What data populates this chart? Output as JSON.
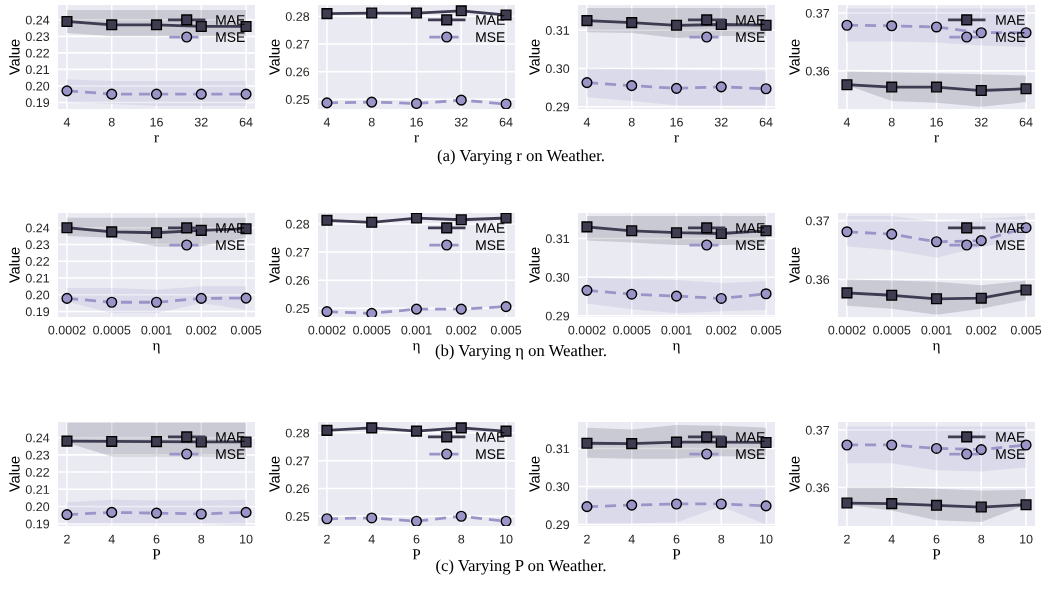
{
  "chart_data": [
    {
      "type": "line",
      "categories": [
        "4",
        "8",
        "16",
        "32",
        "64"
      ],
      "xlabel": "r",
      "ylabel": "Value",
      "ylim": [
        0.186,
        0.249
      ],
      "yticks": [
        {
          "value": 0.19,
          "label": "0.19"
        },
        {
          "value": 0.2,
          "label": "0.20"
        },
        {
          "value": 0.21,
          "label": "0.21"
        },
        {
          "value": 0.22,
          "label": "0.22"
        },
        {
          "value": 0.23,
          "label": "0.23"
        },
        {
          "value": 0.24,
          "label": "0.24"
        }
      ],
      "grid": true,
      "legend": "top right",
      "annotations": [
        "(a) Varying r on Weather."
      ],
      "series": [
        {
          "name": "MAE",
          "color": "#3f3c52",
          "marker": "square",
          "line_style": "solid",
          "values": [
            0.239,
            0.237,
            0.237,
            0.236,
            0.236
          ],
          "lower": [
            0.232,
            0.23,
            0.23,
            0.23,
            0.23
          ],
          "upper": [
            0.246,
            0.246,
            0.246,
            0.246,
            0.246
          ]
        },
        {
          "name": "MSE",
          "color": "#9b94c8",
          "marker": "circle",
          "line_style": "dashed",
          "values": [
            0.197,
            0.195,
            0.195,
            0.195,
            0.195
          ],
          "lower": [
            0.19,
            0.189,
            0.188,
            0.188,
            0.188
          ],
          "upper": [
            0.204,
            0.203,
            0.203,
            0.203,
            0.203
          ]
        }
      ]
    },
    {
      "type": "line",
      "categories": [
        "4",
        "8",
        "16",
        "32",
        "64"
      ],
      "xlabel": "r",
      "ylabel": "Value",
      "ylim": [
        0.2465,
        0.2841
      ],
      "yticks": [
        0.25,
        0.26,
        0.27,
        0.28
      ],
      "grid": true,
      "legend": "top right",
      "series": [
        {
          "name": "MAE",
          "color": "#3f3c52",
          "marker": "square",
          "line_style": "solid",
          "values": [
            0.281,
            0.2812,
            0.2812,
            0.282,
            0.2805
          ]
        },
        {
          "name": "MSE",
          "color": "#9b94c8",
          "marker": "circle",
          "line_style": "dashed",
          "values": [
            0.2487,
            0.249,
            0.2485,
            0.2497,
            0.2483
          ]
        }
      ]
    },
    {
      "type": "line",
      "categories": [
        "4",
        "8",
        "16",
        "32",
        "64"
      ],
      "xlabel": "r",
      "ylabel": "Value",
      "ylim": [
        0.2894,
        0.3166
      ],
      "yticks": [
        {
          "value": 0.29,
          "label": "0.29"
        },
        {
          "value": 0.3,
          "label": "0.30"
        },
        {
          "value": 0.31,
          "label": "0.31"
        }
      ],
      "grid": true,
      "legend": "top right",
      "series": [
        {
          "name": "MAE",
          "color": "#3f3c52",
          "marker": "square",
          "line_style": "solid",
          "values": [
            0.3125,
            0.312,
            0.3113,
            0.3115,
            0.3113
          ],
          "lower": [
            0.3095,
            0.3093,
            0.308,
            0.3085,
            0.3085
          ],
          "upper": [
            0.3158,
            0.3158,
            0.3158,
            0.3158,
            0.3158
          ]
        },
        {
          "name": "MSE",
          "color": "#9b94c8",
          "marker": "circle",
          "line_style": "dashed",
          "values": [
            0.2963,
            0.2955,
            0.2948,
            0.2952,
            0.2947
          ],
          "lower": [
            0.2925,
            0.2915,
            0.2903,
            0.2903,
            0.2903
          ],
          "upper": [
            0.3,
            0.2998,
            0.2996,
            0.2995,
            0.2993
          ]
        }
      ]
    },
    {
      "type": "line",
      "categories": [
        "4",
        "8",
        "16",
        "32",
        "64"
      ],
      "xlabel": "r",
      "ylabel": "Value",
      "ylim": [
        0.3534,
        0.3714
      ],
      "yticks": [
        0.36,
        0.37
      ],
      "grid": true,
      "legend": "top right",
      "series": [
        {
          "name": "MAE",
          "color": "#3f3c52",
          "marker": "square",
          "line_style": "solid",
          "values": [
            0.3576,
            0.3572,
            0.3572,
            0.3566,
            0.3569
          ],
          "lower": [
            0.3575,
            0.3548,
            0.3545,
            0.3538,
            0.3546
          ],
          "upper": [
            0.3599,
            0.3597,
            0.3596,
            0.3594,
            0.3592
          ]
        },
        {
          "name": "MSE",
          "color": "#9b94c8",
          "marker": "circle",
          "line_style": "dashed",
          "values": [
            0.3679,
            0.3678,
            0.3676,
            0.3666,
            0.3666
          ],
          "lower": [
            0.3651,
            0.3651,
            0.3649,
            0.3644,
            0.3641
          ],
          "upper": [
            0.3708,
            0.3708,
            0.3708,
            0.3708,
            0.3708
          ]
        }
      ]
    },
    {
      "type": "line",
      "categories": [
        "0.0002",
        "0.0005",
        "0.001",
        "0.002",
        "0.005"
      ],
      "xlabel": "η",
      "ylabel": "Value",
      "ylim": [
        0.1867,
        0.2488
      ],
      "yticks": [
        {
          "value": 0.19,
          "label": "0.19"
        },
        {
          "value": 0.2,
          "label": "0.20"
        },
        {
          "value": 0.21,
          "label": "0.21"
        },
        {
          "value": 0.22,
          "label": "0.22"
        },
        {
          "value": 0.23,
          "label": "0.23"
        },
        {
          "value": 0.24,
          "label": "0.24"
        }
      ],
      "grid": true,
      "legend": "top right",
      "annotations": [
        "(b) Varying η on Weather."
      ],
      "series": [
        {
          "name": "MAE",
          "color": "#3f3c52",
          "marker": "square",
          "line_style": "solid",
          "values": [
            0.24,
            0.2375,
            0.237,
            0.2384,
            0.2394
          ],
          "lower": [
            0.2351,
            0.234,
            0.2288,
            0.229,
            0.234
          ],
          "upper": [
            0.246,
            0.246,
            0.246,
            0.246,
            0.246
          ]
        },
        {
          "name": "MSE",
          "color": "#9b94c8",
          "marker": "circle",
          "line_style": "dashed",
          "values": [
            0.1978,
            0.1955,
            0.1955,
            0.1978,
            0.198
          ],
          "lower": [
            0.196,
            0.189,
            0.189,
            0.195,
            0.191
          ],
          "upper": [
            0.204,
            0.204,
            0.203,
            0.205,
            0.205
          ]
        }
      ]
    },
    {
      "type": "line",
      "categories": [
        "0.0002",
        "0.0005",
        "0.001",
        "0.002",
        "0.005"
      ],
      "xlabel": "η",
      "ylabel": "Value",
      "ylim": [
        0.2469,
        0.2839
      ],
      "yticks": [
        0.25,
        0.26,
        0.27,
        0.28
      ],
      "grid": true,
      "legend": "top right",
      "series": [
        {
          "name": "MAE",
          "color": "#3f3c52",
          "marker": "square",
          "line_style": "solid",
          "values": [
            0.2813,
            0.2806,
            0.2821,
            0.2815,
            0.2821
          ]
        },
        {
          "name": "MSE",
          "color": "#9b94c8",
          "marker": "circle",
          "line_style": "dashed",
          "values": [
            0.2488,
            0.2482,
            0.2497,
            0.2497,
            0.2506
          ]
        }
      ]
    },
    {
      "type": "line",
      "categories": [
        "0.0002",
        "0.0005",
        "0.001",
        "0.002",
        "0.005"
      ],
      "xlabel": "η",
      "ylabel": "Value",
      "ylim": [
        0.2897,
        0.3166
      ],
      "yticks": [
        {
          "value": 0.29,
          "label": "0.29"
        },
        {
          "value": 0.3,
          "label": "0.30"
        },
        {
          "value": 0.31,
          "label": "0.31"
        }
      ],
      "grid": true,
      "legend": "top right",
      "series": [
        {
          "name": "MAE",
          "color": "#3f3c52",
          "marker": "square",
          "line_style": "solid",
          "values": [
            0.313,
            0.312,
            0.3115,
            0.3113,
            0.312
          ],
          "lower": [
            0.3095,
            0.309,
            0.3083,
            0.3083,
            0.3085
          ],
          "upper": [
            0.3158,
            0.3158,
            0.3158,
            0.3158,
            0.3158
          ]
        },
        {
          "name": "MSE",
          "color": "#9b94c8",
          "marker": "circle",
          "line_style": "dashed",
          "values": [
            0.2966,
            0.2956,
            0.2951,
            0.2945,
            0.2957
          ],
          "lower": [
            0.2932,
            0.2917,
            0.2907,
            0.2912,
            0.2915
          ],
          "upper": [
            0.2999,
            0.2995,
            0.2993,
            0.2985,
            0.299
          ]
        }
      ]
    },
    {
      "type": "line",
      "categories": [
        "0.0002",
        "0.0005",
        "0.001",
        "0.002",
        "0.005"
      ],
      "xlabel": "η",
      "ylabel": "Value",
      "ylim": [
        0.3536,
        0.3713
      ],
      "yticks": [
        0.36,
        0.37
      ],
      "grid": true,
      "legend": "top right",
      "series": [
        {
          "name": "MAE",
          "color": "#3f3c52",
          "marker": "square",
          "line_style": "solid",
          "values": [
            0.3577,
            0.3573,
            0.3567,
            0.3568,
            0.3582
          ],
          "lower": [
            0.3555,
            0.355,
            0.354,
            0.355,
            0.3565
          ],
          "upper": [
            0.36,
            0.3598,
            0.3596,
            0.359,
            0.3598
          ]
        },
        {
          "name": "MSE",
          "color": "#9b94c8",
          "marker": "circle",
          "line_style": "dashed",
          "values": [
            0.3681,
            0.3677,
            0.3664,
            0.3666,
            0.3688
          ],
          "lower": [
            0.3656,
            0.365,
            0.3637,
            0.3655,
            0.3668
          ],
          "upper": [
            0.3708,
            0.3708,
            0.3698,
            0.3703,
            0.3708
          ]
        }
      ]
    },
    {
      "type": "line",
      "categories": [
        "2",
        "4",
        "6",
        "8",
        "10"
      ],
      "xlabel": "P",
      "ylabel": "Value",
      "ylim": [
        0.1887,
        0.2491
      ],
      "yticks": [
        {
          "value": 0.19,
          "label": "0.19"
        },
        {
          "value": 0.2,
          "label": "0.20"
        },
        {
          "value": 0.21,
          "label": "0.21"
        },
        {
          "value": 0.22,
          "label": "0.22"
        },
        {
          "value": 0.23,
          "label": "0.23"
        },
        {
          "value": 0.24,
          "label": "0.24"
        }
      ],
      "grid": true,
      "legend": "top right",
      "annotations": [
        "(c) Varying P on Weather."
      ],
      "series": [
        {
          "name": "MAE",
          "color": "#3f3c52",
          "marker": "square",
          "line_style": "solid",
          "values": [
            0.238,
            0.2378,
            0.2377,
            0.2375,
            0.2375
          ],
          "lower": [
            0.237,
            0.229,
            0.229,
            0.229,
            0.229
          ],
          "upper": [
            0.2487,
            0.2487,
            0.2487,
            0.2487,
            0.2487
          ]
        },
        {
          "name": "MSE",
          "color": "#9b94c8",
          "marker": "circle",
          "line_style": "dashed",
          "values": [
            0.1953,
            0.1966,
            0.1962,
            0.1957,
            0.1966
          ],
          "lower": [
            0.19,
            0.19,
            0.19,
            0.19,
            0.189
          ],
          "upper": [
            0.2025,
            0.204,
            0.2035,
            0.2035,
            0.204
          ]
        }
      ]
    },
    {
      "type": "line",
      "categories": [
        "2",
        "4",
        "6",
        "8",
        "10"
      ],
      "xlabel": "P",
      "ylabel": "Value",
      "ylim": [
        0.2465,
        0.2839
      ],
      "yticks": [
        0.25,
        0.26,
        0.27,
        0.28
      ],
      "grid": true,
      "legend": "top right",
      "series": [
        {
          "name": "MAE",
          "color": "#3f3c52",
          "marker": "square",
          "line_style": "solid",
          "values": [
            0.2809,
            0.2818,
            0.2806,
            0.2818,
            0.2806
          ]
        },
        {
          "name": "MSE",
          "color": "#9b94c8",
          "marker": "circle",
          "line_style": "dashed",
          "values": [
            0.2491,
            0.2494,
            0.2482,
            0.25,
            0.2482
          ]
        }
      ]
    },
    {
      "type": "line",
      "categories": [
        "2",
        "4",
        "6",
        "8",
        "10"
      ],
      "xlabel": "P",
      "ylabel": "Value",
      "ylim": [
        0.2896,
        0.317
      ],
      "yticks": [
        {
          "value": 0.29,
          "label": "0.29"
        },
        {
          "value": 0.3,
          "label": "0.30"
        },
        {
          "value": 0.31,
          "label": "0.31"
        }
      ],
      "grid": true,
      "legend": "top right",
      "series": [
        {
          "name": "MAE",
          "color": "#3f3c52",
          "marker": "square",
          "line_style": "solid",
          "values": [
            0.3114,
            0.3113,
            0.3117,
            0.3117,
            0.3116
          ],
          "lower": [
            0.3076,
            0.3073,
            0.3073,
            0.308,
            0.308
          ],
          "upper": [
            0.3155,
            0.315,
            0.3162,
            0.316,
            0.3155
          ]
        },
        {
          "name": "MSE",
          "color": "#9b94c8",
          "marker": "circle",
          "line_style": "dashed",
          "values": [
            0.2947,
            0.2951,
            0.2954,
            0.2954,
            0.2949
          ],
          "lower": [
            0.2903,
            0.2903,
            0.2905,
            0.2948,
            0.29
          ],
          "upper": [
            0.2993,
            0.2993,
            0.2993,
            0.2993,
            0.2993
          ]
        }
      ]
    },
    {
      "type": "line",
      "categories": [
        "2",
        "4",
        "6",
        "8",
        "10"
      ],
      "xlabel": "P",
      "ylabel": "Value",
      "ylim": [
        0.3533,
        0.3714
      ],
      "yticks": [
        0.36,
        0.37
      ],
      "grid": true,
      "legend": "top right",
      "series": [
        {
          "name": "MAE",
          "color": "#3f3c52",
          "marker": "square",
          "line_style": "solid",
          "values": [
            0.3573,
            0.3572,
            0.3569,
            0.3566,
            0.357
          ],
          "lower": [
            0.357,
            0.356,
            0.3543,
            0.354,
            0.357
          ],
          "upper": [
            0.36,
            0.36,
            0.3598,
            0.3595,
            0.3596
          ]
        },
        {
          "name": "MSE",
          "color": "#9b94c8",
          "marker": "circle",
          "line_style": "dashed",
          "values": [
            0.3674,
            0.3674,
            0.3668,
            0.3666,
            0.3674
          ],
          "lower": [
            0.3642,
            0.3642,
            0.363,
            0.3628,
            0.3635
          ],
          "upper": [
            0.3706,
            0.3706,
            0.3706,
            0.3706,
            0.3706
          ]
        }
      ]
    }
  ]
}
